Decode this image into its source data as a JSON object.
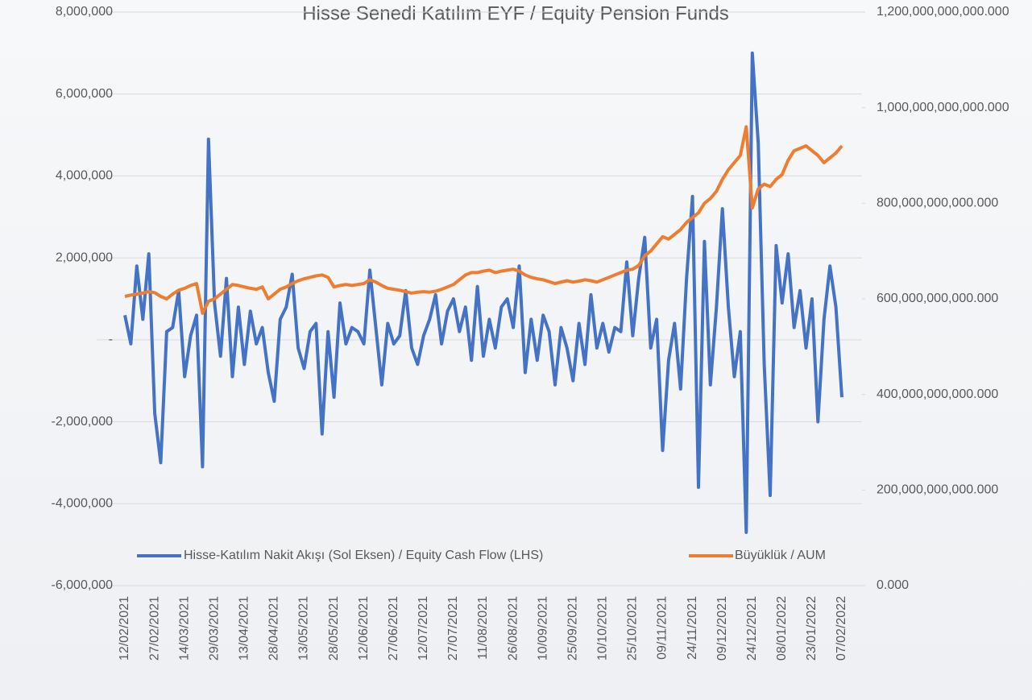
{
  "chart_data": {
    "type": "line",
    "title": "Hisse Senedi Katılım EYF / Equity Pension Funds",
    "categories": [
      "12/02/2021",
      null,
      null,
      null,
      null,
      "27/02/2021",
      null,
      null,
      null,
      null,
      "14/03/2021",
      null,
      null,
      null,
      null,
      "29/03/2021",
      null,
      null,
      null,
      null,
      "13/04/2021",
      null,
      null,
      null,
      null,
      "28/04/2021",
      null,
      null,
      null,
      null,
      "13/05/2021",
      null,
      null,
      null,
      null,
      "28/05/2021",
      null,
      null,
      null,
      null,
      "12/06/2021",
      null,
      null,
      null,
      null,
      "27/06/2021",
      null,
      null,
      null,
      null,
      "12/07/2021",
      null,
      null,
      null,
      null,
      "27/07/2021",
      null,
      null,
      null,
      null,
      "11/08/2021",
      null,
      null,
      null,
      null,
      "26/08/2021",
      null,
      null,
      null,
      null,
      "10/09/2021",
      null,
      null,
      null,
      null,
      "25/09/2021",
      null,
      null,
      null,
      null,
      "10/10/2021",
      null,
      null,
      null,
      null,
      "25/10/2021",
      null,
      null,
      null,
      null,
      "09/11/2021",
      null,
      null,
      null,
      null,
      "24/11/2021",
      null,
      null,
      null,
      null,
      "09/12/2021",
      null,
      null,
      null,
      null,
      "24/12/2021",
      null,
      null,
      null,
      null,
      "08/01/2022",
      null,
      null,
      null,
      null,
      "23/01/2022",
      null,
      null,
      null,
      null,
      "07/02/2022"
    ],
    "series": [
      {
        "name": "Hisse-Katılım Nakit Akışı (Sol Eksen) / Equity Cash Flow (LHS)",
        "color": "#4472c4",
        "values": [
          600000,
          -100000,
          1800000,
          500000,
          2100000,
          -1800000,
          -3000000,
          200000,
          300000,
          1200000,
          -900000,
          100000,
          600000,
          -3100000,
          4900000,
          900000,
          -400000,
          1500000,
          -900000,
          800000,
          -600000,
          700000,
          -100000,
          300000,
          -800000,
          -1500000,
          500000,
          800000,
          1600000,
          -200000,
          -700000,
          200000,
          400000,
          -2300000,
          200000,
          -1400000,
          900000,
          -100000,
          300000,
          200000,
          -100000,
          1700000,
          300000,
          -1100000,
          400000,
          -100000,
          100000,
          1200000,
          -200000,
          -600000,
          100000,
          500000,
          1100000,
          -100000,
          700000,
          1000000,
          200000,
          800000,
          -500000,
          1300000,
          -400000,
          500000,
          -200000,
          800000,
          1000000,
          300000,
          1800000,
          -800000,
          500000,
          -500000,
          600000,
          200000,
          -1100000,
          300000,
          -200000,
          -1000000,
          400000,
          -600000,
          1100000,
          -200000,
          400000,
          -300000,
          300000,
          200000,
          1900000,
          100000,
          1500000,
          2500000,
          -200000,
          500000,
          -2700000,
          -500000,
          400000,
          -1200000,
          1500000,
          3500000,
          -3600000,
          2400000,
          -1100000,
          800000,
          3200000,
          800000,
          -900000,
          200000,
          -4700000,
          7000000,
          4800000,
          -600000,
          -3800000,
          2300000,
          900000,
          2100000,
          300000,
          1200000,
          -200000,
          1000000,
          -2000000,
          500000,
          1800000,
          800000,
          -1400000
        ]
      },
      {
        "name": "Büyüklük / AUM",
        "color": "#ed7d31",
        "axis": "y2",
        "values": [
          605000000000,
          608000000000,
          610000000000,
          612000000000,
          615000000000,
          613000000000,
          605000000000,
          600000000000,
          610000000000,
          618000000000,
          622000000000,
          628000000000,
          632000000000,
          570000000000,
          595000000000,
          600000000000,
          610000000000,
          620000000000,
          630000000000,
          628000000000,
          625000000000,
          622000000000,
          620000000000,
          625000000000,
          600000000000,
          610000000000,
          620000000000,
          625000000000,
          632000000000,
          638000000000,
          642000000000,
          645000000000,
          648000000000,
          650000000000,
          645000000000,
          625000000000,
          628000000000,
          630000000000,
          628000000000,
          630000000000,
          632000000000,
          640000000000,
          635000000000,
          628000000000,
          622000000000,
          620000000000,
          618000000000,
          615000000000,
          612000000000,
          614000000000,
          615000000000,
          614000000000,
          616000000000,
          620000000000,
          625000000000,
          630000000000,
          640000000000,
          650000000000,
          655000000000,
          655000000000,
          658000000000,
          660000000000,
          655000000000,
          658000000000,
          660000000000,
          662000000000,
          658000000000,
          650000000000,
          645000000000,
          642000000000,
          640000000000,
          636000000000,
          632000000000,
          635000000000,
          638000000000,
          635000000000,
          637000000000,
          640000000000,
          638000000000,
          635000000000,
          640000000000,
          645000000000,
          650000000000,
          655000000000,
          660000000000,
          662000000000,
          670000000000,
          690000000000,
          700000000000,
          715000000000,
          730000000000,
          725000000000,
          735000000000,
          745000000000,
          760000000000,
          770000000000,
          780000000000,
          800000000000,
          810000000000,
          825000000000,
          850000000000,
          870000000000,
          885000000000,
          900000000000,
          960000000000,
          790000000000,
          830000000000,
          840000000000,
          835000000000,
          850000000000,
          860000000000,
          890000000000,
          910000000000,
          915000000000,
          920000000000,
          910000000000,
          900000000000,
          885000000000,
          895000000000,
          905000000000,
          920000000000
        ]
      }
    ],
    "ylim": [
      -6000000,
      8000000
    ],
    "yticks": [
      {
        "value": -6000000,
        "label": "-6,000,000"
      },
      {
        "value": -4000000,
        "label": "-4,000,000"
      },
      {
        "value": -2000000,
        "label": "-2,000,000"
      },
      {
        "value": 0,
        "label": "-"
      },
      {
        "value": 2000000,
        "label": "2,000,000"
      },
      {
        "value": 4000000,
        "label": "4,000,000"
      },
      {
        "value": 6000000,
        "label": "6,000,000"
      },
      {
        "value": 8000000,
        "label": "8,000,000"
      }
    ],
    "y2lim": [
      0,
      1200000000000
    ],
    "y2ticks": [
      {
        "value": 0,
        "label": "0.000"
      },
      {
        "value": 200000000000,
        "label": "200,000,000,000.000"
      },
      {
        "value": 400000000000,
        "label": "400,000,000,000.000"
      },
      {
        "value": 600000000000,
        "label": "600,000,000,000.000"
      },
      {
        "value": 800000000000,
        "label": "800,000,000,000.000"
      },
      {
        "value": 1000000000000,
        "label": "1,000,000,000,000.000"
      },
      {
        "value": 1200000000000,
        "label": "1,200,000,000,000.000"
      }
    ],
    "grid": true,
    "legend": "bottom"
  }
}
